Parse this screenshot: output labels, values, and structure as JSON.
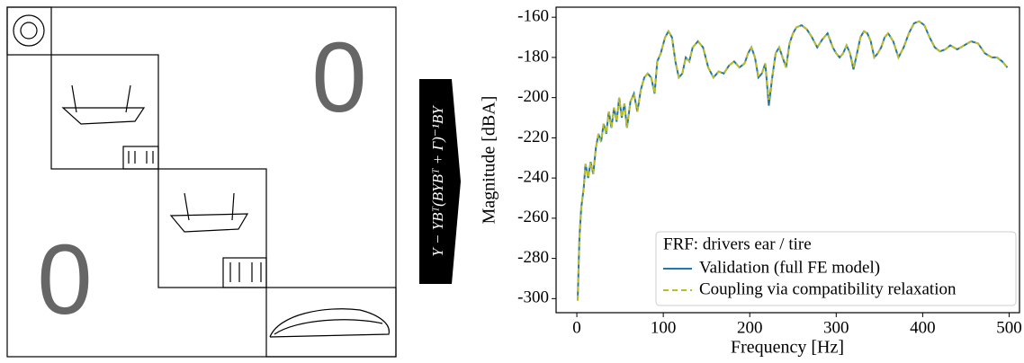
{
  "diagram": {
    "zeros": [
      "0",
      "0"
    ],
    "operator": "Y − YBᵀ(BYBᵀ + Γ)⁻¹BY"
  },
  "chart_data": {
    "type": "line",
    "x_label": "Frequency [Hz]",
    "y_label": "Magnitude [dBA]",
    "legend_title": "FRF: drivers ear / tire",
    "legend": "lower right",
    "xlim": [
      -24,
      512
    ],
    "ylim": [
      -307,
      -155
    ],
    "xticks": [
      0,
      100,
      200,
      300,
      400,
      500
    ],
    "yticks": [
      -300,
      -280,
      -260,
      -240,
      -220,
      -200,
      -180,
      -160
    ],
    "x": [
      1,
      3,
      5,
      8,
      10,
      13,
      16,
      19,
      22,
      25,
      28,
      31,
      34,
      37,
      40,
      43,
      46,
      49,
      52,
      55,
      58,
      62,
      66,
      70,
      74,
      78,
      82,
      86,
      90,
      93,
      97,
      102,
      106,
      110,
      114,
      118,
      122,
      126,
      130,
      134,
      140,
      146,
      152,
      158,
      164,
      170,
      176,
      182,
      188,
      194,
      198,
      202,
      206,
      210,
      214,
      218,
      222,
      226,
      230,
      234,
      238,
      242,
      246,
      250,
      254,
      260,
      266,
      272,
      278,
      284,
      290,
      296,
      300,
      304,
      308,
      312,
      316,
      320,
      324,
      328,
      332,
      336,
      340,
      344,
      348,
      352,
      356,
      360,
      366,
      372,
      378,
      384,
      390,
      396,
      402,
      408,
      414,
      420,
      426,
      432,
      440,
      448,
      456,
      464,
      472,
      480,
      486,
      492,
      498
    ],
    "series": [
      {
        "name": "Validation (full FE model)",
        "color": "#1f77b4",
        "dash": false,
        "values": [
          -301,
          -270,
          -255,
          -245,
          -233,
          -240,
          -232,
          -238,
          -225,
          -218,
          -222,
          -213,
          -218,
          -207,
          -215,
          -205,
          -212,
          -200,
          -210,
          -203,
          -215,
          -202,
          -198,
          -207,
          -196,
          -190,
          -188,
          -190,
          -198,
          -182,
          -178,
          -170,
          -167,
          -170,
          -182,
          -190,
          -188,
          -180,
          -182,
          -175,
          -172,
          -175,
          -185,
          -190,
          -187,
          -188,
          -184,
          -182,
          -185,
          -183,
          -178,
          -175,
          -180,
          -190,
          -188,
          -183,
          -204,
          -190,
          -178,
          -175,
          -180,
          -185,
          -173,
          -168,
          -165,
          -164,
          -166,
          -170,
          -175,
          -171,
          -168,
          -175,
          -178,
          -180,
          -178,
          -174,
          -178,
          -186,
          -178,
          -170,
          -167,
          -168,
          -172,
          -180,
          -178,
          -175,
          -170,
          -168,
          -172,
          -180,
          -175,
          -168,
          -163,
          -162,
          -164,
          -170,
          -175,
          -177,
          -176,
          -174,
          -176,
          -174,
          -172,
          -173,
          -178,
          -180,
          -180,
          -182,
          -185
        ]
      },
      {
        "name": "Coupling via compatibility relaxation",
        "color": "#bcbd22",
        "dash": true,
        "values": [
          -301,
          -270,
          -255,
          -245,
          -233,
          -240,
          -232,
          -238,
          -225,
          -218,
          -222,
          -213,
          -218,
          -207,
          -215,
          -205,
          -212,
          -200,
          -210,
          -203,
          -215,
          -202,
          -198,
          -207,
          -196,
          -190,
          -188,
          -190,
          -198,
          -182,
          -178,
          -170,
          -167,
          -170,
          -182,
          -190,
          -188,
          -180,
          -182,
          -175,
          -172,
          -175,
          -185,
          -190,
          -187,
          -188,
          -184,
          -182,
          -185,
          -183,
          -178,
          -175,
          -180,
          -189,
          -188,
          -183,
          -201,
          -190,
          -178,
          -175,
          -180,
          -185,
          -173,
          -168,
          -165,
          -164,
          -166,
          -170,
          -175,
          -171,
          -168,
          -175,
          -178,
          -180,
          -178,
          -174,
          -178,
          -185,
          -178,
          -170,
          -167,
          -168,
          -172,
          -180,
          -178,
          -175,
          -170,
          -168,
          -172,
          -180,
          -175,
          -168,
          -163,
          -162,
          -164,
          -170,
          -175,
          -177,
          -176,
          -174,
          -176,
          -174,
          -172,
          -173,
          -178,
          -180,
          -180,
          -182,
          -185
        ]
      }
    ]
  }
}
